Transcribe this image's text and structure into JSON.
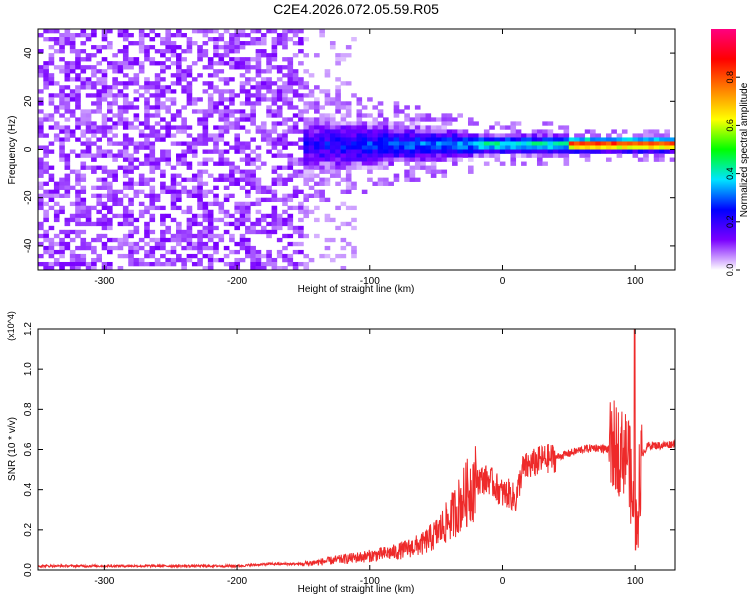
{
  "figure": {
    "title": "C2E4.2026.072.05.59.R05"
  },
  "chart_data": [
    {
      "type": "heatmap",
      "xlabel": "Height of straight line (km)",
      "ylabel": "Frequency (Hz)",
      "xlim": [
        -350,
        130
      ],
      "ylim": [
        -50,
        50
      ],
      "x_ticks": [
        -300,
        -200,
        -100,
        0,
        100
      ],
      "y_ticks": [
        -40,
        -20,
        0,
        20,
        40
      ],
      "colorbar": {
        "label": "Normalized spectral amplitude",
        "range": [
          0,
          1
        ],
        "ticks": [
          "0.0",
          "0.2",
          "0.4",
          "0.6",
          "0.8"
        ],
        "colors": [
          "#ffffff",
          "#7a00ff",
          "#0000ff",
          "#00e5ff",
          "#00ff00",
          "#ffff00",
          "#ff8000",
          "#ff0000",
          "#ff0080"
        ]
      },
      "description_values": {
        "noise_region_x": [
          -350,
          -150
        ],
        "noise_amplitude": 0.08,
        "signal_center_freq_hz": 2,
        "signal_emerges_x": -150,
        "signal_peak_amplitude": 0.95,
        "strong_signal_x": [
          60,
          130
        ]
      }
    },
    {
      "type": "line",
      "xlabel": "Height of straight line (km)",
      "ylabel": "SNR (10 * v/v)",
      "y_multiplier": "(x10^4)",
      "xlim": [
        -350,
        130
      ],
      "ylim": [
        0,
        1.2
      ],
      "x_ticks": [
        -300,
        -200,
        -100,
        0,
        100
      ],
      "y_ticks": [
        "0.0",
        "0.2",
        "0.4",
        "0.6",
        "0.8",
        "1.0",
        "1.2"
      ],
      "color": "#ee2a2a",
      "series": [
        {
          "x": [
            -350,
            -300,
            -250,
            -200,
            -175,
            -150,
            -125,
            -100,
            -80,
            -60,
            -50,
            -40,
            -30,
            -20,
            -10,
            0,
            5,
            10,
            15,
            20,
            30,
            40,
            50,
            60,
            70,
            80,
            90,
            95,
            100,
            105,
            110,
            120,
            130
          ],
          "values": [
            0.02,
            0.02,
            0.02,
            0.02,
            0.03,
            0.03,
            0.05,
            0.07,
            0.09,
            0.13,
            0.18,
            0.25,
            0.35,
            0.45,
            0.45,
            0.38,
            0.38,
            0.35,
            0.5,
            0.52,
            0.55,
            0.56,
            0.58,
            0.6,
            0.61,
            0.6,
            0.6,
            0.6,
            0.15,
            0.58,
            0.62,
            0.62,
            0.63
          ]
        }
      ]
    }
  ]
}
